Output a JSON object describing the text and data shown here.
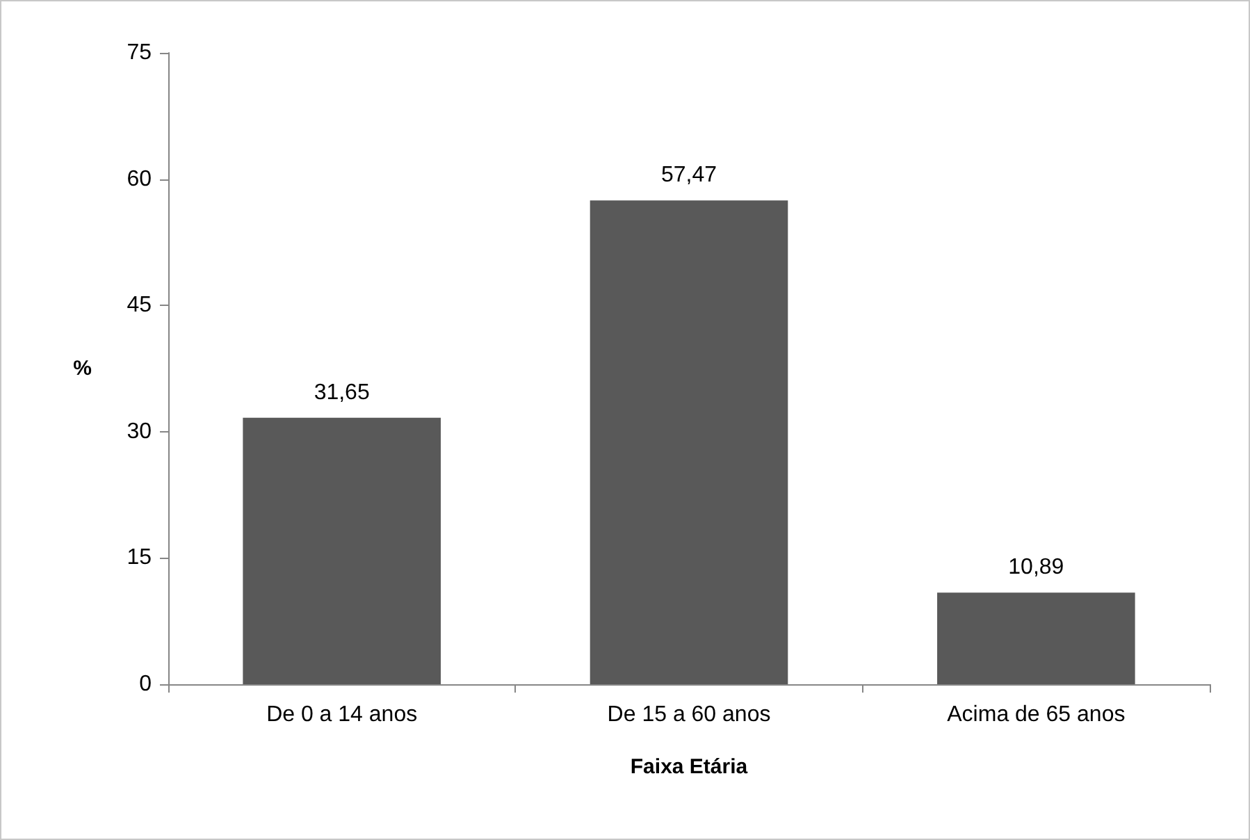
{
  "chart_data": {
    "type": "bar",
    "xlabel": "Faixa Etária",
    "ylabel": "%",
    "categories": [
      "De 0 a 14 anos",
      "De 15 a 60 anos",
      "Acima de 65 anos"
    ],
    "values": [
      31.65,
      57.47,
      10.89
    ],
    "color": "#595959",
    "value_labels": [
      "31,65",
      "57,47",
      "10,89"
    ],
    "ylim": [
      0,
      75
    ],
    "yticks": [
      0,
      15,
      30,
      45,
      60,
      75
    ]
  }
}
